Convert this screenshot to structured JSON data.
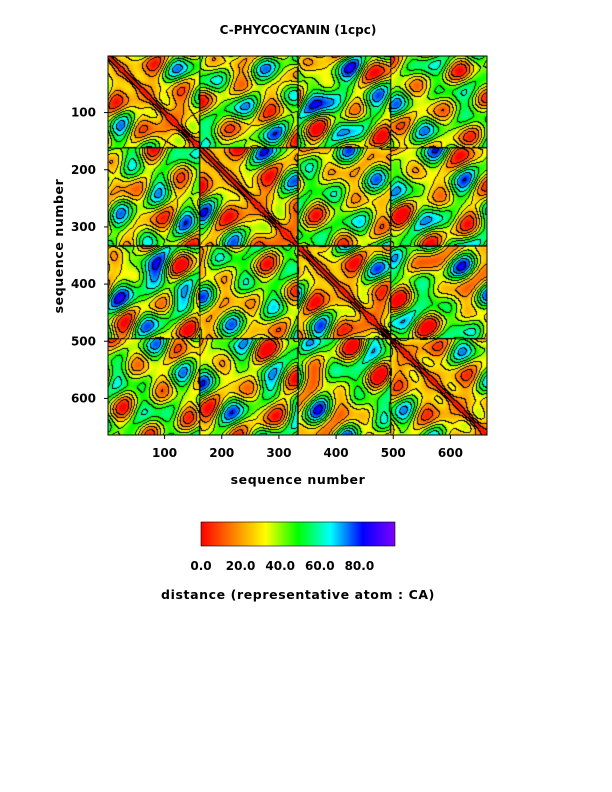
{
  "chart_data": {
    "type": "heatmap",
    "title": "C-PHYCOCYANIN (1cpc)",
    "xlabel": "sequence number",
    "ylabel": "sequence number",
    "xlim": [
      1,
      664
    ],
    "ylim": [
      1,
      664
    ],
    "y_inverted": true,
    "xticks": [
      100,
      200,
      300,
      400,
      500,
      600
    ],
    "xtick_labels": [
      "100",
      "200",
      "300",
      "400",
      "500",
      "600"
    ],
    "yticks": [
      100,
      200,
      300,
      400,
      500,
      600
    ],
    "ytick_labels": [
      "100",
      "200",
      "300",
      "400",
      "500",
      "600"
    ],
    "chain_boundaries": [
      162,
      334,
      496
    ],
    "value_description": "pairwise CA-CA distance matrix, symmetric, near 0 on the diagonal",
    "colorbar": {
      "min": 0.0,
      "max": 98.0,
      "ticks": [
        0,
        20,
        40,
        60,
        80
      ],
      "tick_labels": [
        "0.0",
        "20.0",
        "40.0",
        "60.0",
        "80.0"
      ],
      "label": "distance (representative atom : CA)",
      "colors": [
        "#ff0000",
        "#ff8000",
        "#ffff00",
        "#00ff00",
        "#00ffff",
        "#0000ff",
        "#8000ff"
      ]
    },
    "contour_color": "#000000",
    "grid": false,
    "legend": "colorbar-below"
  }
}
